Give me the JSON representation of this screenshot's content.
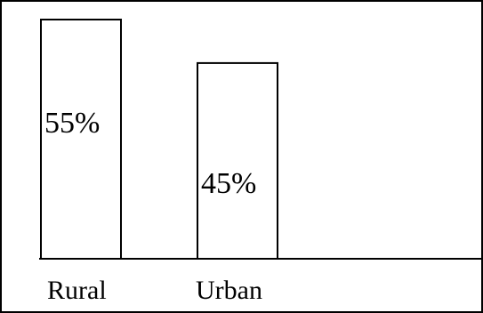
{
  "chart_data": {
    "type": "bar",
    "title": "",
    "xlabel": "",
    "ylabel": "",
    "categories": [
      "Rural",
      "Urban"
    ],
    "values": [
      55,
      45
    ],
    "data_labels": [
      "55%",
      "45%"
    ],
    "ylim": [
      0,
      55
    ],
    "grid": false,
    "colors": {
      "bar_fill": "#ffffff",
      "bar_stroke": "#000000"
    }
  }
}
